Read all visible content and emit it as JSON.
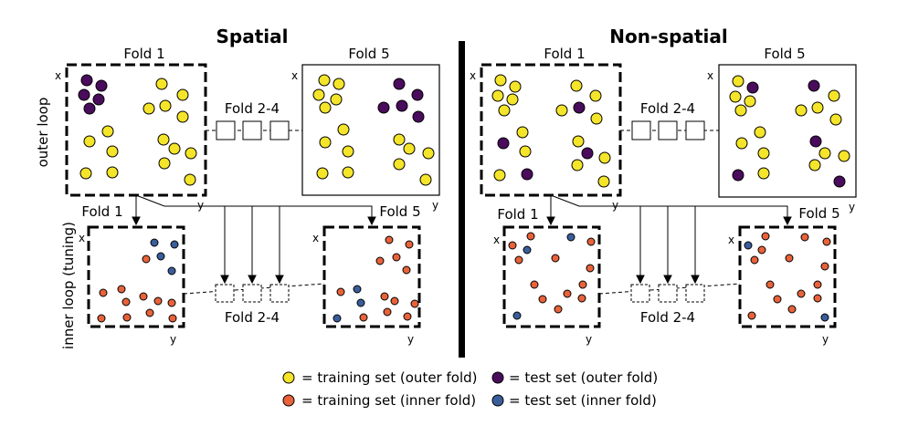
{
  "panels": [
    {
      "id": "spatial",
      "title": "Spatial",
      "outer_fold_first": "Fold 1",
      "outer_fold_last": "Fold 5",
      "outer_fold_mid": "Fold 2-4",
      "inner_fold_first": "Fold 1",
      "inner_fold_last": "Fold 5",
      "inner_fold_mid": "Fold 2-4"
    },
    {
      "id": "non-spatial",
      "title": "Non-spatial",
      "outer_fold_first": "Fold 1",
      "outer_fold_last": "Fold 5",
      "outer_fold_mid": "Fold 2-4",
      "inner_fold_first": "Fold 1",
      "inner_fold_last": "Fold 5",
      "inner_fold_mid": "Fold 2-4"
    }
  ],
  "axis_labels": {
    "x": "x",
    "y": "y"
  },
  "row_labels": {
    "outer": "outer loop",
    "inner": "inner loop (tuning)"
  },
  "legend": {
    "train_outer": "= training set (outer fold)",
    "test_outer": "= test set (outer fold)",
    "train_inner": "= training set (inner fold)",
    "test_inner": "= test set (inner fold)"
  },
  "colors": {
    "train_outer": "#f5e52a",
    "test_outer": "#4a0c5c",
    "train_inner": "#e8623a",
    "test_inner": "#3a5e9c"
  }
}
